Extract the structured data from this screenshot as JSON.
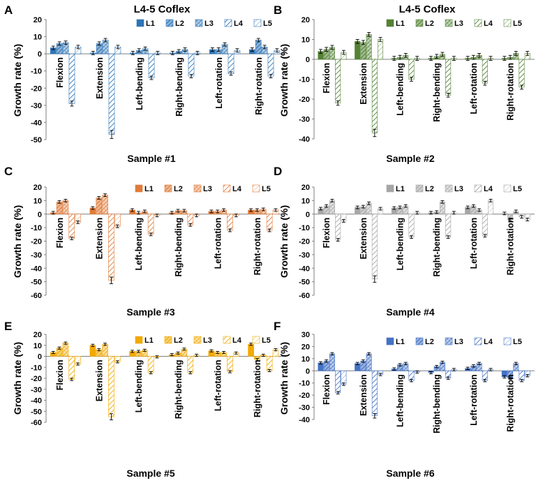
{
  "figure_title": "L4-5 Coflex",
  "pattern_ids": {
    "L1": "solid",
    "L2": "diag-dense",
    "L3": "cross",
    "L4": "diag-sparse",
    "L5": "diag-light"
  },
  "chart_data": [
    {
      "type": "bar",
      "panel_label": "A",
      "title": "L4-5 Coflex",
      "subtitle": "Sample #1",
      "ylabel": "Growth rate (%)",
      "ylim": [
        -50,
        20
      ],
      "yticks": [
        20,
        10,
        0,
        -10,
        -20,
        -30,
        -40,
        -50
      ],
      "color": "#2e75b6",
      "categories": [
        "Flexion",
        "Extension",
        "Left-bending",
        "Right-bending",
        "Left-rotation",
        "Right-rotation"
      ],
      "series": [
        {
          "name": "L1",
          "values": [
            3.5,
            0.5,
            0.5,
            0.5,
            2.5,
            2.5
          ]
        },
        {
          "name": "L2",
          "values": [
            6,
            6,
            2,
            1.5,
            2.5,
            8
          ]
        },
        {
          "name": "L3",
          "values": [
            6.5,
            8,
            3,
            2.5,
            5.5,
            4
          ]
        },
        {
          "name": "L4",
          "values": [
            -29,
            -47,
            -14,
            -13,
            -11.5,
            -13
          ]
        },
        {
          "name": "L5",
          "values": [
            4,
            4,
            0.5,
            0.5,
            2,
            2
          ]
        }
      ]
    },
    {
      "type": "bar",
      "panel_label": "B",
      "title": "L4-5 Coflex",
      "subtitle": "Sample #2",
      "ylabel": "Growth rate (%)",
      "ylim": [
        -40,
        20
      ],
      "yticks": [
        20,
        10,
        0,
        -10,
        -20,
        -30,
        -40
      ],
      "color": "#548235",
      "categories": [
        "Flexion",
        "Extension",
        "Left-bending",
        "Right-bending",
        "Left-rotation",
        "Right-rotation"
      ],
      "series": [
        {
          "name": "L1",
          "values": [
            4,
            9,
            0.5,
            0.5,
            0.5,
            0.5
          ]
        },
        {
          "name": "L2",
          "values": [
            5,
            8.5,
            1,
            1.5,
            1,
            1
          ]
        },
        {
          "name": "L3",
          "values": [
            6,
            12.5,
            2,
            2.5,
            2,
            3
          ]
        },
        {
          "name": "L4",
          "values": [
            -22,
            -37,
            -10,
            -18,
            -12,
            -14
          ]
        },
        {
          "name": "L5",
          "values": [
            3.5,
            10,
            0.5,
            0.5,
            0.5,
            3
          ]
        }
      ]
    },
    {
      "type": "bar",
      "panel_label": "C",
      "title": "",
      "subtitle": "Sample #3",
      "ylabel": "Growth rate (%)",
      "ylim": [
        -60,
        20
      ],
      "yticks": [
        20,
        10,
        0,
        -10,
        -20,
        -30,
        -40,
        -50,
        -60
      ],
      "color": "#e07b39",
      "categories": [
        "Flexion",
        "Extension",
        "Left-bending",
        "Right-bending",
        "Left-rotation",
        "Right-rotation"
      ],
      "series": [
        {
          "name": "L1",
          "values": [
            1,
            4.5,
            3,
            1,
            2,
            3
          ]
        },
        {
          "name": "L2",
          "values": [
            9,
            12,
            1,
            2.5,
            2,
            3
          ]
        },
        {
          "name": "L3",
          "values": [
            10,
            14,
            2,
            2.5,
            3,
            3.5
          ]
        },
        {
          "name": "L4",
          "values": [
            -18,
            -49,
            -15,
            -8,
            -12,
            -12
          ]
        },
        {
          "name": "L5",
          "values": [
            -6,
            -9,
            -1,
            -1,
            -1,
            3
          ]
        }
      ]
    },
    {
      "type": "bar",
      "panel_label": "D",
      "title": "",
      "subtitle": "Sample #4",
      "ylabel": "Growth rate (%)",
      "ylim": [
        -60,
        20
      ],
      "yticks": [
        20,
        10,
        0,
        -10,
        -20,
        -30,
        -40,
        -50,
        -60
      ],
      "color": "#a6a6a6",
      "categories": [
        "Flexion",
        "Extension",
        "Left-bending",
        "Right-bending",
        "Left-rotation",
        "Right-rotation"
      ],
      "series": [
        {
          "name": "L1",
          "values": [
            4,
            5,
            4.5,
            1,
            5,
            0.5
          ]
        },
        {
          "name": "L2",
          "values": [
            6,
            5.5,
            5,
            1.5,
            6,
            -4
          ]
        },
        {
          "name": "L3",
          "values": [
            10,
            8,
            6,
            9,
            3,
            2
          ]
        },
        {
          "name": "L4",
          "values": [
            -19,
            -48,
            -17,
            -17,
            -16,
            -2
          ]
        },
        {
          "name": "L5",
          "values": [
            -5,
            4,
            1,
            1,
            10,
            -4
          ]
        }
      ]
    },
    {
      "type": "bar",
      "panel_label": "E",
      "title": "",
      "subtitle": "Sample #5",
      "ylabel": "Growth rate (%)",
      "ylim": [
        -60,
        20
      ],
      "yticks": [
        20,
        10,
        0,
        -10,
        -20,
        -30,
        -40,
        -50,
        -60
      ],
      "color": "#f2a900",
      "categories": [
        "Flexion",
        "Extension",
        "Left-bending",
        "Right-bending",
        "Left-rotation",
        "Right-rotation"
      ],
      "series": [
        {
          "name": "L1",
          "values": [
            3.5,
            10,
            4.5,
            1.5,
            5,
            11
          ]
        },
        {
          "name": "L2",
          "values": [
            7.5,
            6,
            4.5,
            3,
            3.5,
            -3
          ]
        },
        {
          "name": "L3",
          "values": [
            12,
            11,
            5.5,
            6.5,
            3.5,
            1
          ]
        },
        {
          "name": "L4",
          "values": [
            -21,
            -55,
            -15,
            -15,
            -14,
            -13
          ]
        },
        {
          "name": "L5",
          "values": [
            -7,
            -5,
            -0.5,
            1,
            3,
            6
          ]
        }
      ]
    },
    {
      "type": "bar",
      "panel_label": "F",
      "title": "",
      "subtitle": "Sample #6",
      "ylabel": "Growth rate (%)",
      "ylim": [
        -40,
        30
      ],
      "yticks": [
        30,
        20,
        10,
        0,
        -10,
        -20,
        -30,
        -40
      ],
      "color": "#4472c4",
      "categories": [
        "Flexion",
        "Extension",
        "Left-bending",
        "Right-bending",
        "Left-rotation",
        "Right-rotation"
      ],
      "series": [
        {
          "name": "L1",
          "values": [
            6.5,
            6,
            1.5,
            -1.5,
            2,
            -5
          ]
        },
        {
          "name": "L2",
          "values": [
            8,
            8,
            5,
            3.5,
            4,
            -6
          ]
        },
        {
          "name": "L3",
          "values": [
            14,
            14,
            6,
            7,
            6,
            6
          ]
        },
        {
          "name": "L4",
          "values": [
            -18,
            -37,
            -8,
            -6,
            -8,
            -8
          ]
        },
        {
          "name": "L5",
          "values": [
            -11,
            -3,
            -1,
            1,
            1,
            -4
          ]
        }
      ]
    }
  ]
}
